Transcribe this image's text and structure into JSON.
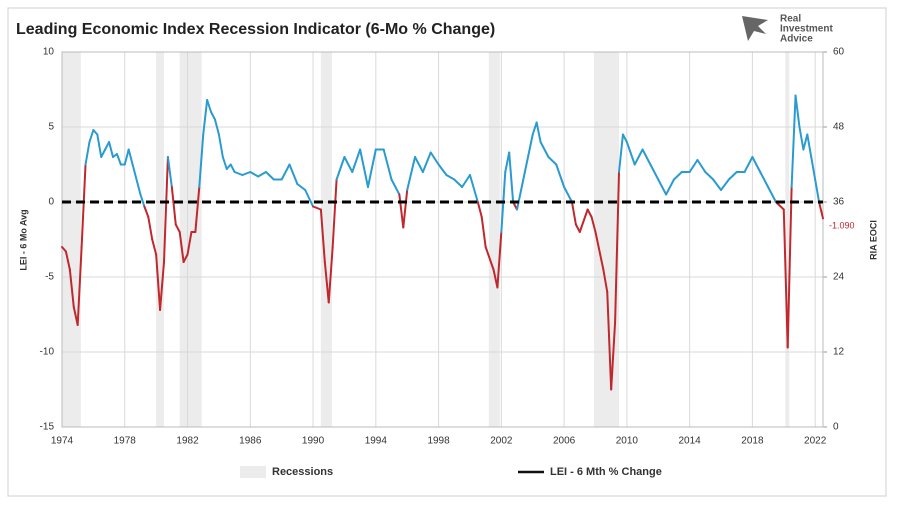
{
  "chart_data": {
    "type": "line",
    "title": "Leading Economic Index Recession Indicator (6-Mo % Change)",
    "logo": [
      "Real",
      "Investment",
      "Advice"
    ],
    "ylabel": "LEI - 6 Mo Avg",
    "y2label": "RIA EOCI",
    "xlim": [
      1974,
      2022.5
    ],
    "xticks": [
      1974,
      1978,
      1982,
      1986,
      1990,
      1994,
      1998,
      2002,
      2006,
      2010,
      2014,
      2018,
      2022
    ],
    "ylim": [
      -15,
      10
    ],
    "yticks": [
      -15,
      -10,
      -5,
      0,
      5,
      10
    ],
    "y2lim": [
      0,
      60
    ],
    "y2ticks": [
      0,
      12,
      24,
      36,
      48,
      60
    ],
    "grid": true,
    "zero_line": true,
    "recession_name": "Recessions",
    "recession_color": "#ececec",
    "recessions": [
      [
        1973.9,
        1975.2
      ],
      [
        1980.0,
        1980.5
      ],
      [
        1981.5,
        1982.9
      ],
      [
        1990.5,
        1991.2
      ],
      [
        2001.2,
        2001.9
      ],
      [
        2007.9,
        2009.5
      ],
      [
        2020.1,
        2020.35
      ]
    ],
    "annotation": {
      "text": "-1.090",
      "value": -1.09,
      "color": "#c0282d"
    },
    "series": [
      {
        "name": "LEI - 6 Mth % Change",
        "legend_color": "#111111",
        "positive_color": "#2a9bd1",
        "negative_color": "#c0282d",
        "x": [
          1974.0,
          1974.25,
          1974.5,
          1974.75,
          1975.0,
          1975.25,
          1975.5,
          1975.75,
          1976.0,
          1976.25,
          1976.5,
          1976.75,
          1977.0,
          1977.25,
          1977.5,
          1977.75,
          1978.0,
          1978.25,
          1978.5,
          1978.75,
          1979.0,
          1979.25,
          1979.5,
          1979.75,
          1980.0,
          1980.25,
          1980.5,
          1980.75,
          1981.0,
          1981.25,
          1981.5,
          1981.75,
          1982.0,
          1982.25,
          1982.5,
          1982.75,
          1983.0,
          1983.25,
          1983.5,
          1983.75,
          1984.0,
          1984.25,
          1984.5,
          1984.75,
          1985.0,
          1985.5,
          1986.0,
          1986.5,
          1987.0,
          1987.5,
          1988.0,
          1988.5,
          1989.0,
          1989.5,
          1990.0,
          1990.5,
          1990.75,
          1991.0,
          1991.25,
          1991.5,
          1992.0,
          1992.5,
          1993.0,
          1993.5,
          1994.0,
          1994.5,
          1995.0,
          1995.5,
          1995.75,
          1996.0,
          1996.5,
          1997.0,
          1997.5,
          1998.0,
          1998.5,
          1999.0,
          1999.5,
          2000.0,
          2000.5,
          2000.75,
          2001.0,
          2001.5,
          2001.75,
          2002.0,
          2002.25,
          2002.5,
          2002.75,
          2003.0,
          2003.5,
          2004.0,
          2004.25,
          2004.5,
          2005.0,
          2005.5,
          2006.0,
          2006.5,
          2006.75,
          2007.0,
          2007.5,
          2007.75,
          2008.0,
          2008.5,
          2008.75,
          2009.0,
          2009.25,
          2009.5,
          2009.75,
          2010.0,
          2010.5,
          2011.0,
          2011.5,
          2012.0,
          2012.5,
          2013.0,
          2013.5,
          2014.0,
          2014.5,
          2015.0,
          2015.5,
          2016.0,
          2016.5,
          2017.0,
          2017.5,
          2018.0,
          2018.5,
          2019.0,
          2019.5,
          2020.0,
          2020.25,
          2020.5,
          2020.75,
          2021.0,
          2021.25,
          2021.5,
          2021.75,
          2022.0,
          2022.25,
          2022.5
        ],
        "values": [
          -3,
          -3.3,
          -4.5,
          -7,
          -8.2,
          -3,
          2.5,
          4,
          4.8,
          4.5,
          3,
          3.5,
          4,
          3,
          3.2,
          2.5,
          2.5,
          3.5,
          2.5,
          1.5,
          0.5,
          -0.3,
          -1,
          -2.5,
          -3.5,
          -7.2,
          -4,
          3,
          1,
          -1.5,
          -2,
          -4,
          -3.5,
          -2,
          -2,
          1,
          4.5,
          6.8,
          6,
          5.5,
          4.5,
          3,
          2.2,
          2.5,
          2,
          1.8,
          2,
          1.7,
          2,
          1.5,
          1.5,
          2.5,
          1.2,
          0.8,
          -0.3,
          -0.5,
          -4,
          -6.7,
          -3,
          1.5,
          3,
          2,
          3.5,
          1,
          3.5,
          3.5,
          1.5,
          0.5,
          -1.7,
          0.8,
          3,
          2,
          3.3,
          2.5,
          1.8,
          1.5,
          1,
          1.8,
          0,
          -1,
          -3,
          -4.5,
          -5.7,
          -2,
          2,
          3.3,
          0,
          -0.5,
          2,
          4.5,
          5.3,
          4,
          3,
          2.5,
          1,
          0,
          -1.5,
          -2,
          -0.5,
          -1,
          -2,
          -4.5,
          -6,
          -12.5,
          -8,
          2,
          4.5,
          4,
          2.5,
          3.5,
          2.5,
          1.5,
          0.5,
          1.5,
          2,
          2,
          2.8,
          2,
          1.5,
          0.8,
          1.5,
          2,
          2,
          3,
          2,
          1,
          0,
          -0.5,
          -9.7,
          1,
          7.1,
          5,
          3.5,
          4.5,
          3,
          1.5,
          0,
          -1.09
        ]
      }
    ]
  }
}
